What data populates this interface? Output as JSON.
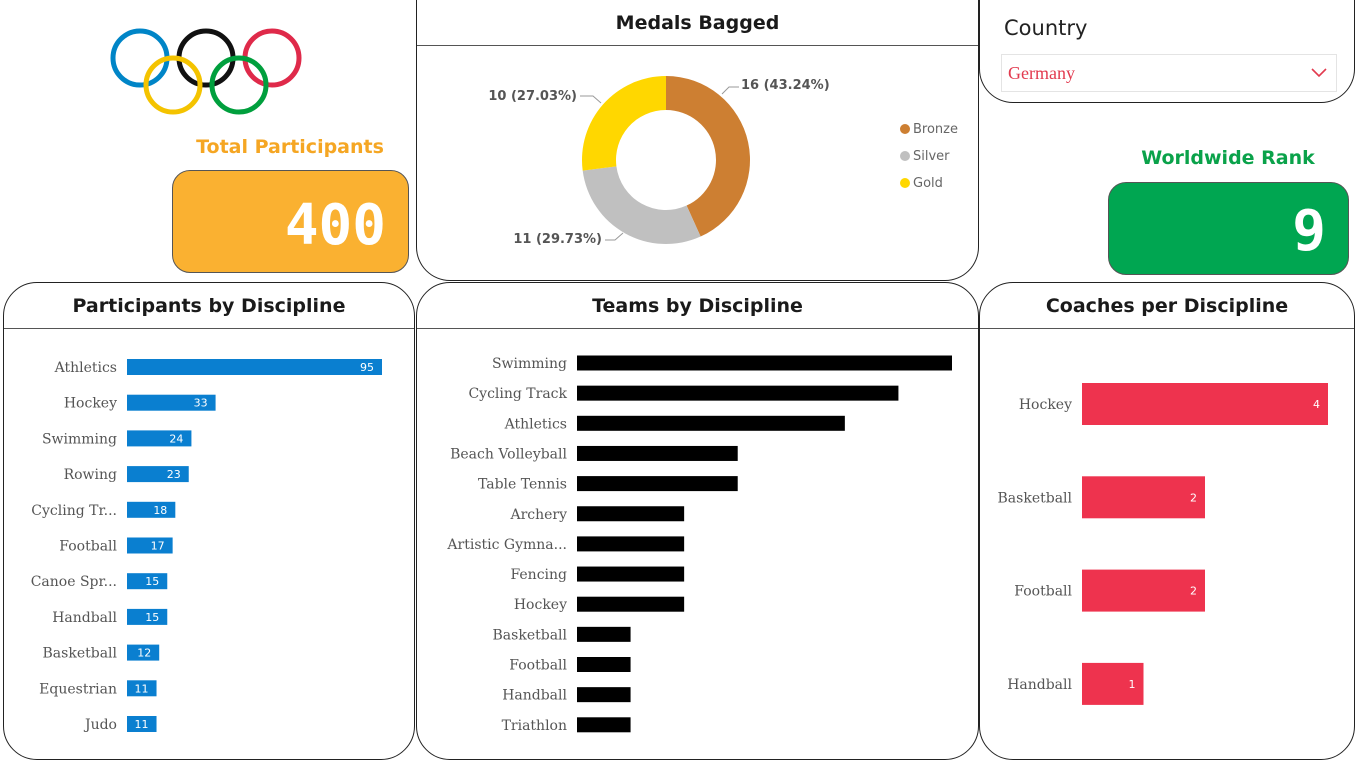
{
  "total_participants": {
    "label": "Total Participants",
    "value": "400",
    "color": "#fab131"
  },
  "worldwide_rank": {
    "label": "Worldwide Rank",
    "value": "9",
    "color": "#00a651"
  },
  "country_filter": {
    "title": "Country",
    "selected": "Germany"
  },
  "colors": {
    "participants": "#0a7fd0",
    "teams": "#000000",
    "coaches": "#ee334e"
  },
  "chart_data": [
    {
      "type": "pie",
      "title": "Medals Bagged",
      "categories": [
        "Bronze",
        "Silver",
        "Gold"
      ],
      "values": [
        16,
        11,
        10
      ],
      "data_labels": [
        "16 (43.24%)",
        "11 (29.73%)",
        "10 (27.03%)"
      ],
      "colors": [
        "#cd7f32",
        "#c0c0c0",
        "#ffd700"
      ],
      "legend": "right",
      "style": "donut"
    },
    {
      "type": "bar",
      "title": "Participants by Discipline",
      "orientation": "horizontal",
      "categories": [
        "Athletics",
        "Hockey",
        "Swimming",
        "Rowing",
        "Cycling Tr...",
        "Football",
        "Canoe Spr...",
        "Handball",
        "Basketball",
        "Equestrian",
        "Judo"
      ],
      "values": [
        95,
        33,
        24,
        23,
        18,
        17,
        15,
        15,
        12,
        11,
        11
      ],
      "xlim": [
        0,
        95
      ]
    },
    {
      "type": "bar",
      "title": "Teams by Discipline",
      "orientation": "horizontal",
      "categories": [
        "Swimming",
        "Cycling Track",
        "Athletics",
        "Beach Volleyball",
        "Table Tennis",
        "Archery",
        "Artistic Gymna...",
        "Fencing",
        "Hockey",
        "Basketball",
        "Football",
        "Handball",
        "Triathlon"
      ],
      "values": [
        7,
        6,
        5,
        3,
        3,
        2,
        2,
        2,
        2,
        1,
        1,
        1,
        1
      ],
      "xlim": [
        0,
        7
      ]
    },
    {
      "type": "bar",
      "title": "Coaches per Discipline",
      "orientation": "horizontal",
      "categories": [
        "Hockey",
        "Basketball",
        "Football",
        "Handball"
      ],
      "values": [
        4,
        2,
        2,
        1
      ],
      "xlim": [
        0,
        4
      ]
    }
  ]
}
